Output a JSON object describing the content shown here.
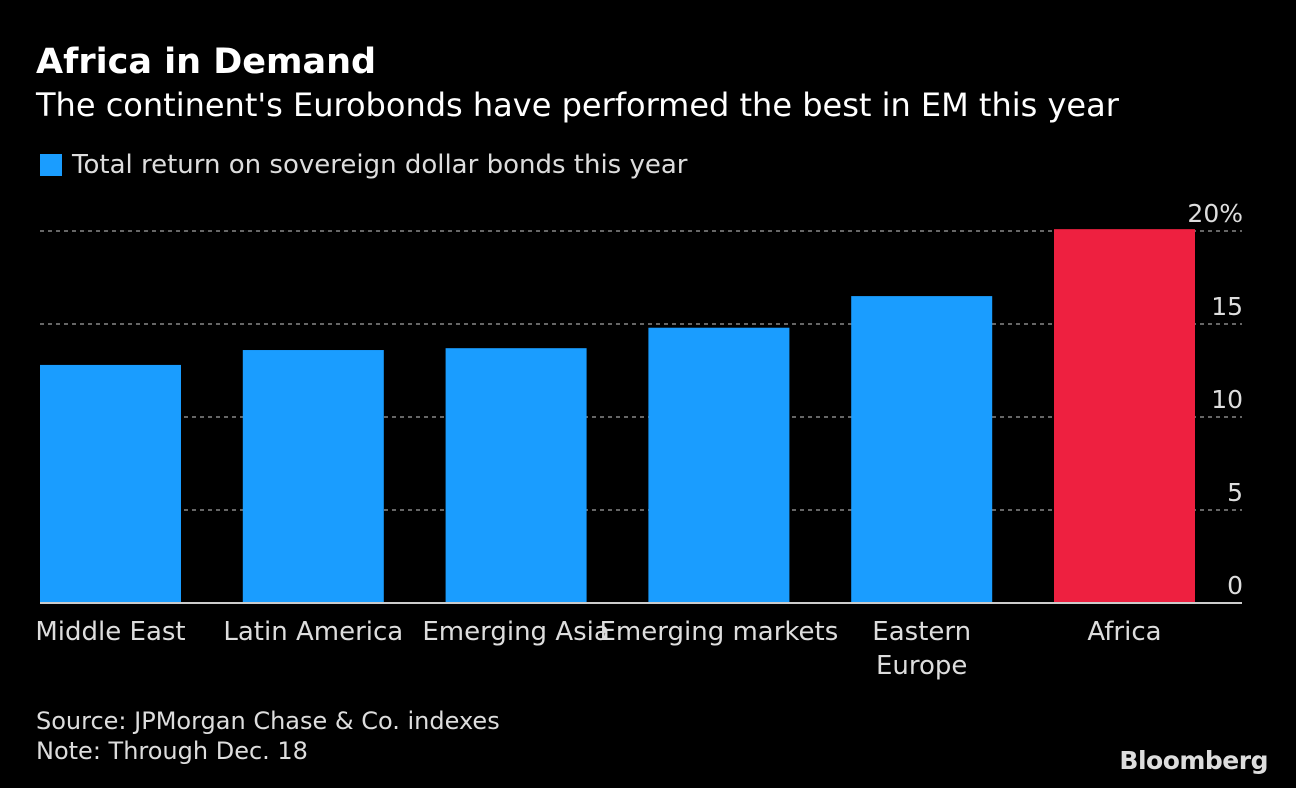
{
  "title": "Africa in Demand",
  "subtitle": "The continent's Eurobonds have performed the best in EM this year",
  "source": "Source: JPMorgan Chase & Co. indexes",
  "note": "Note: Through Dec. 18",
  "logo": "Bloomberg",
  "chart_data": {
    "type": "bar",
    "legend": "Total return on sovereign dollar bonds this year",
    "legend_position": "top-left",
    "categories": [
      "Middle East",
      "Latin America",
      "Emerging Asia",
      "Emerging markets",
      "Eastern Europe",
      "Africa"
    ],
    "values": [
      12.8,
      13.6,
      13.7,
      14.8,
      16.5,
      20.1
    ],
    "colors": [
      "#1a9dff",
      "#1a9dff",
      "#1a9dff",
      "#1a9dff",
      "#1a9dff",
      "#ee2040"
    ],
    "yticks": [
      0,
      5,
      10,
      15,
      20
    ],
    "ytick_labels": [
      "0",
      "5",
      "10",
      "15",
      "20%"
    ],
    "ylim": [
      0,
      20
    ],
    "grid": true,
    "yaxis_side": "right"
  }
}
